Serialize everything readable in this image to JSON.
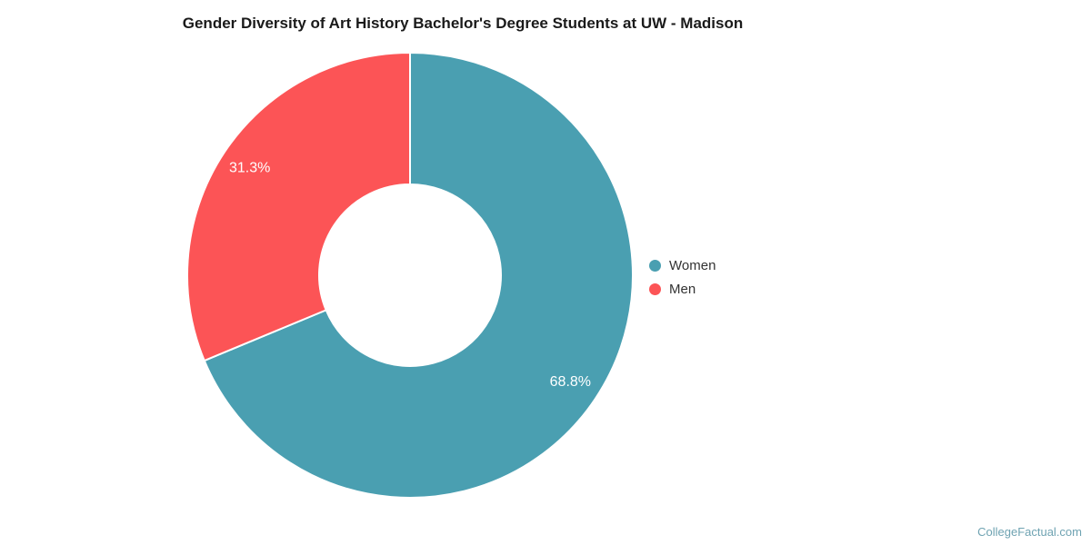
{
  "chart_data": {
    "type": "pie",
    "subtype": "donut",
    "title": "Gender Diversity of Art History Bachelor's Degree Students at UW - Madison",
    "start_angle_deg": 0,
    "direction": "clockwise",
    "segments": [
      {
        "label": "Women",
        "value": 68.8,
        "display": "68.8%",
        "color": "#4A9FB1"
      },
      {
        "label": "Men",
        "value": 31.3,
        "display": "31.3%",
        "color": "#FC5456"
      }
    ],
    "slice_label_color": "#FFFFFF",
    "slice_border_color": "#FFFFFF",
    "legend_position": "right",
    "background_color": "#FFFFFF"
  },
  "footer": {
    "watermark": "CollegeFactual.com",
    "watermark_color": "#6FA3B2"
  }
}
